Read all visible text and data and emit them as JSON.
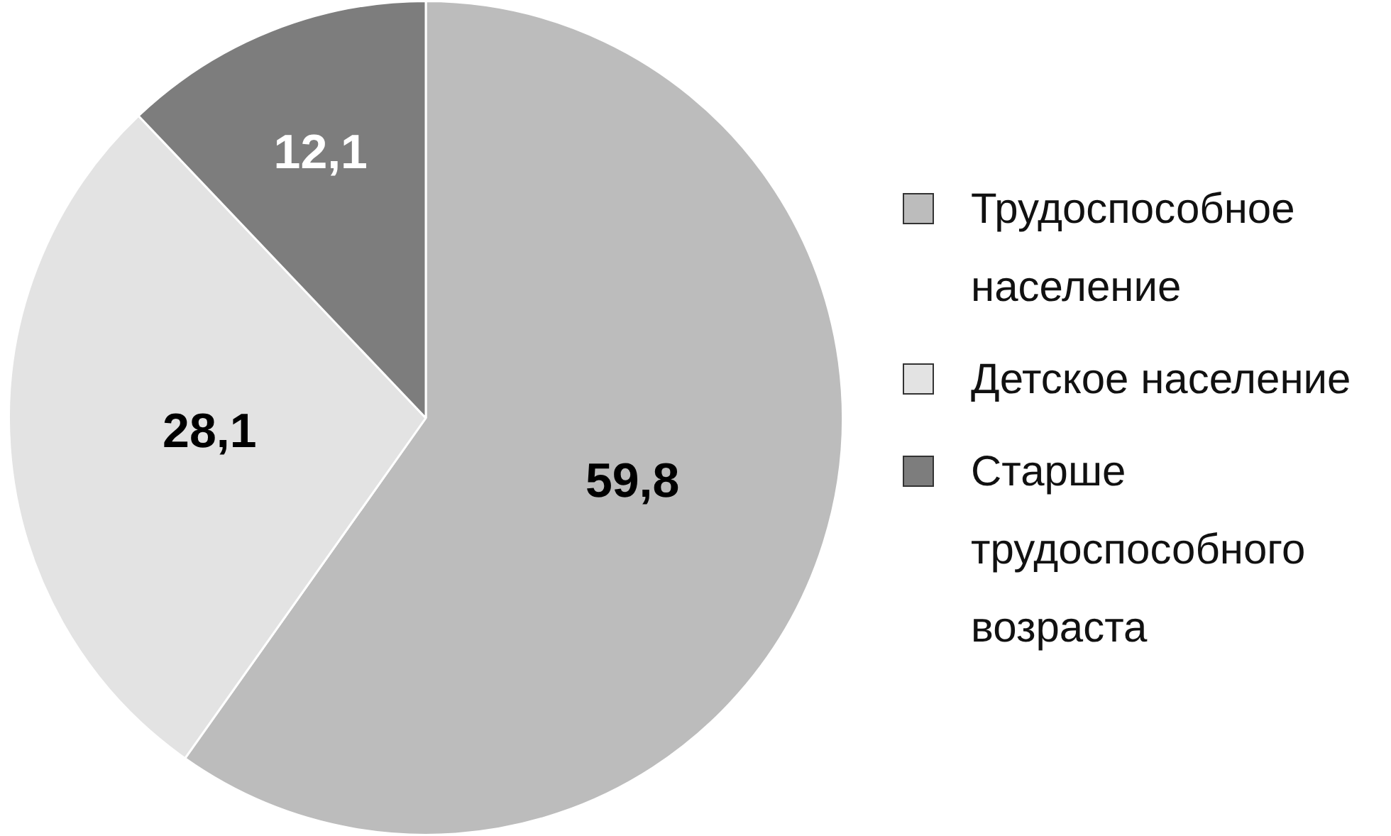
{
  "chart_data": {
    "type": "pie",
    "categories": [
      "Трудоспособное население",
      "Детское население",
      "Старше трудоспособного возраста"
    ],
    "values": [
      59.8,
      28.1,
      12.1
    ],
    "value_labels": [
      "59,8",
      "28,1",
      "12,1"
    ],
    "colors": [
      "#bcbcbc",
      "#e3e3e3",
      "#7d7d7d"
    ],
    "legend": "right"
  }
}
